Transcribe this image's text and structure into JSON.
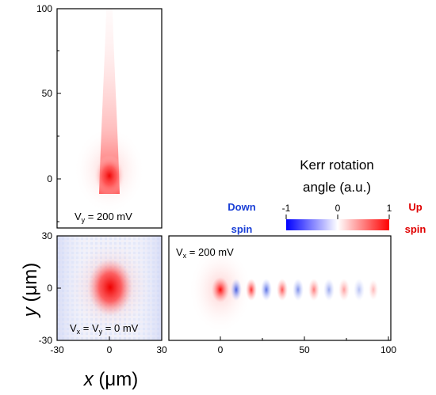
{
  "panels": {
    "vy": {
      "label_prefix": "V",
      "label_sub": "y",
      "label_suffix": " = 200 mV",
      "y_ticks": [
        "100",
        "50",
        "0"
      ]
    },
    "zero": {
      "label_prefix": "V",
      "label_sub_x": "x",
      "label_mid": " = V",
      "label_sub_y": "y",
      "label_suffix": " = 0 mV",
      "y_ticks": [
        "30",
        "0",
        "-30"
      ],
      "x_ticks": [
        "-30",
        "0",
        "30"
      ]
    },
    "vx": {
      "label_prefix": "V",
      "label_sub": "x",
      "label_suffix": " = 200 mV",
      "x_ticks": [
        "0",
        "50",
        "100"
      ]
    }
  },
  "axes": {
    "y_label_letter": "y",
    "y_label_unit": " (μm)",
    "x_label_letter": "x",
    "x_label_unit": " (μm)"
  },
  "colorbar": {
    "title_line1": "Kerr rotation",
    "title_line2": "angle (a.u.)",
    "ticks": [
      "-1",
      "0",
      "1"
    ],
    "left_label_line1": "Down",
    "left_label_line2": "spin",
    "right_label_line1": "Up",
    "right_label_line2": "spin",
    "colors": {
      "negative": "#0000ff",
      "zero": "#ffffff",
      "positive": "#ff0000",
      "down_text": "#1a3fd6",
      "up_text": "#e00000"
    }
  }
}
